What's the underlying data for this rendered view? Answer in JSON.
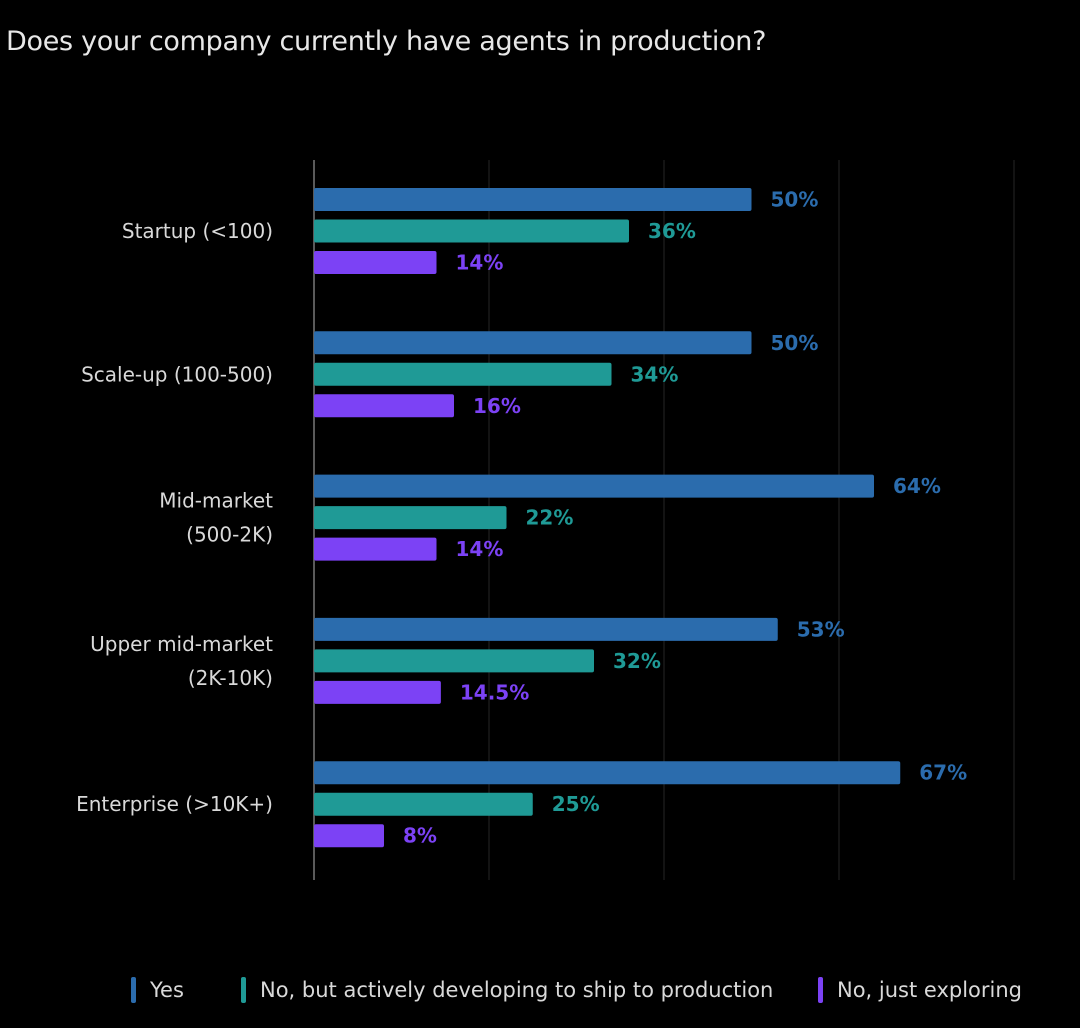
{
  "chart_data": {
    "type": "bar",
    "orientation": "horizontal",
    "title": "Does your company currently have agents in production?",
    "categories": [
      [
        "Startup (<100)"
      ],
      [
        "Scale-up (100-500)"
      ],
      [
        "Mid-market",
        "(500-2K)"
      ],
      [
        "Upper mid-market",
        "(2K-10K)"
      ],
      [
        "Enterprise (>10K+)"
      ]
    ],
    "series": [
      {
        "name": "Yes",
        "color": "#2b6cad",
        "values": [
          50,
          50,
          64,
          53,
          67
        ],
        "labels": [
          "50%",
          "50%",
          "64%",
          "53%",
          "67%"
        ]
      },
      {
        "name": "No, but actively developing to ship to production",
        "color": "#1f9a96",
        "values": [
          36,
          34,
          22,
          32,
          25
        ],
        "labels": [
          "36%",
          "34%",
          "22%",
          "32%",
          "25%"
        ]
      },
      {
        "name": "No, just exploring",
        "color": "#7c42f5",
        "values": [
          14,
          16,
          14,
          14.5,
          8
        ],
        "labels": [
          "14%",
          "16%",
          "14%",
          "14.5%",
          "8%"
        ]
      }
    ],
    "xlim": [
      0,
      80
    ],
    "grid": true,
    "legend_position": "bottom"
  }
}
